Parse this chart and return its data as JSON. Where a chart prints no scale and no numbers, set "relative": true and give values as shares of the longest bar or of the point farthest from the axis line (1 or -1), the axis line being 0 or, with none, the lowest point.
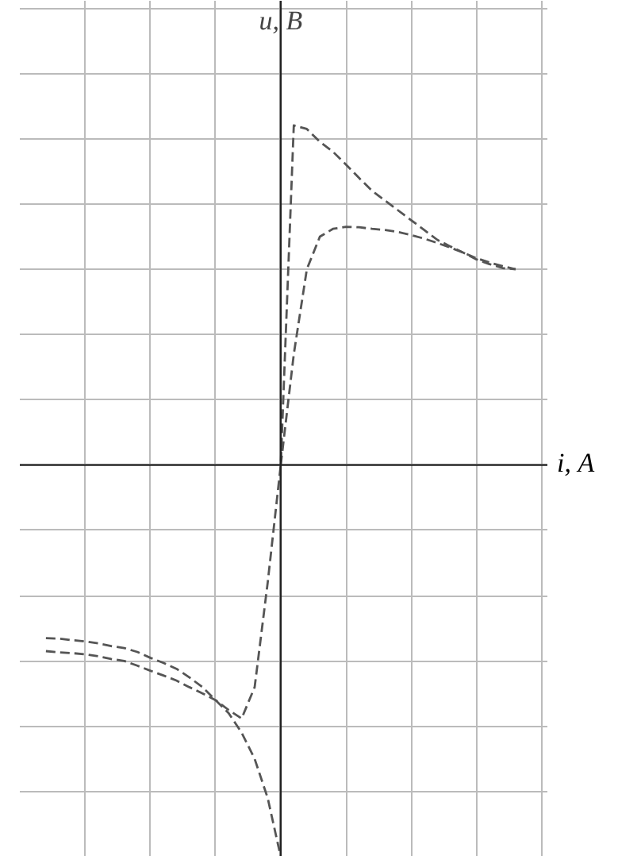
{
  "chart_data": {
    "type": "line",
    "relative": true,
    "xlabel": "i, А",
    "ylabel": "u, В",
    "categories": [
      null,
      null,
      null,
      null,
      null,
      null,
      null,
      null,
      null,
      null,
      null,
      null,
      null,
      null,
      null,
      null,
      null,
      null,
      null,
      null,
      null,
      null,
      null,
      null,
      null,
      null,
      null,
      null,
      null,
      null,
      null,
      null,
      null,
      null,
      null,
      null,
      null
    ],
    "grid": true,
    "line_style": "dashed",
    "series": [
      {
        "color": "#555555",
        "values": [
          -0.475,
          -0.478,
          -0.48,
          -0.483,
          -0.488,
          -0.495,
          -0.5,
          -0.512,
          -0.525,
          -0.537,
          -0.55,
          -0.567,
          -0.583,
          -0.6,
          -0.625,
          -0.647,
          -0.567,
          -0.3,
          0,
          0.867,
          0.858,
          0.825,
          0.8,
          0.767,
          0.733,
          0.7,
          0.675,
          0.65,
          0.625,
          0.6,
          0.575,
          0.558,
          0.542,
          0.525,
          0.513,
          0.503,
          0.5
        ]
      },
      {
        "color": "#555555",
        "values": [
          -0.442,
          -0.443,
          -0.447,
          -0.45,
          -0.455,
          -0.462,
          -0.467,
          -0.477,
          -0.492,
          -0.505,
          -0.52,
          -0.542,
          -0.567,
          -0.6,
          -0.633,
          -0.683,
          -0.75,
          -0.85,
          -1.0,
          null,
          null,
          null,
          null,
          null,
          null,
          null,
          null,
          null,
          null,
          null,
          null,
          null,
          null,
          null,
          null,
          null,
          null
        ]
      },
      {
        "color": "#555555",
        "values": [
          null,
          null,
          null,
          null,
          null,
          null,
          null,
          null,
          null,
          null,
          null,
          null,
          null,
          null,
          null,
          null,
          null,
          null,
          0,
          0.283,
          0.5,
          0.583,
          0.603,
          0.608,
          0.607,
          0.603,
          0.6,
          0.595,
          0.587,
          0.578,
          0.567,
          0.555,
          0.542,
          0.528,
          0.517,
          0.508,
          0.5
        ]
      }
    ]
  }
}
